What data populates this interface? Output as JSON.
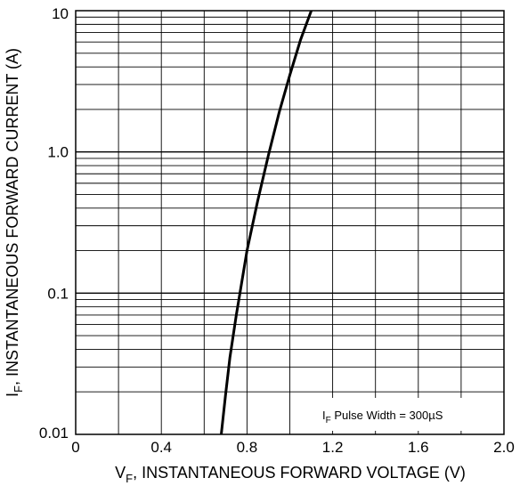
{
  "chart_data": {
    "type": "line",
    "xlabel": {
      "main": "V",
      "sub": "F",
      "rest": ", INSTANTANEOUS FORWARD VOLTAGE (V)"
    },
    "ylabel": {
      "main": "I",
      "sub": "F",
      "rest": ", INSTANTANEOUS FORWARD CURRENT (A)"
    },
    "xlim": [
      0,
      2.0
    ],
    "ylim": [
      0.01,
      10
    ],
    "yscale": "log",
    "grid": true,
    "x_tick_labels": [
      "0",
      "0.4",
      "0.8",
      "1.2",
      "1.6",
      "2.0"
    ],
    "x_tick_values": [
      0,
      0.4,
      0.8,
      1.2,
      1.6,
      2.0
    ],
    "y_tick_labels": [
      "0.01",
      "0.1",
      "1.0",
      "10"
    ],
    "y_tick_values": [
      0.01,
      0.1,
      1.0,
      10
    ],
    "annotation": {
      "main": "I",
      "sub": "F",
      "rest": " Pulse Width = 300µS"
    },
    "series": [
      {
        "x": [
          0.68,
          0.7,
          0.72,
          0.75,
          0.8,
          0.85,
          0.9,
          0.95,
          1.0,
          1.05,
          1.1
        ],
        "y": [
          0.01,
          0.019,
          0.035,
          0.07,
          0.2,
          0.45,
          0.95,
          1.9,
          3.5,
          6.2,
          10
        ]
      }
    ]
  }
}
